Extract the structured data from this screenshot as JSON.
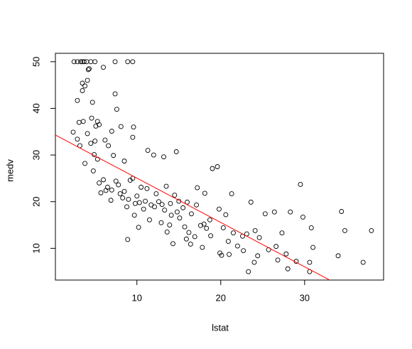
{
  "chart_data": {
    "type": "scatter",
    "x_label": "lstat",
    "y_label": "medv",
    "xlim": [
      0.28,
      39.42
    ],
    "ylim": [
      3.2,
      51.8
    ],
    "xticks": [
      10,
      20,
      30
    ],
    "yticks": [
      10,
      20,
      30,
      40,
      50
    ],
    "color": "#000000",
    "fit_line": {
      "color": "#ff0000",
      "intercept": 34.55,
      "slope": -0.95
    },
    "x": [
      2.9,
      3.3,
      3.5,
      3.7,
      4.0,
      4.5,
      5.0,
      7.4,
      8.9,
      9.5,
      2.5,
      2.9,
      3.5,
      3.8,
      4.1,
      4.2,
      4.3,
      3.5,
      4.6,
      4.7,
      5.1,
      5.3,
      5.5,
      7.4,
      7.6,
      6.0,
      3.1,
      3.6,
      2.4,
      2.9,
      3.2,
      4.1,
      4.5,
      5.0,
      6.2,
      6.6,
      7.0,
      8.1,
      9.6,
      9.5,
      11.3,
      12.0,
      14.7,
      13.2,
      7.2,
      5.3,
      4.9,
      8.5,
      3.8,
      4.8,
      5.5,
      6.0,
      6.5,
      7.0,
      7.5,
      8.0,
      8.5,
      9.0,
      9.5,
      10.0,
      10.3,
      10.5,
      11.0,
      11.2,
      11.7,
      12.1,
      12.3,
      12.6,
      13.0,
      13.3,
      13.5,
      14.0,
      14.1,
      14.5,
      14.8,
      15.0,
      15.1,
      15.5,
      15.7,
      16.0,
      16.2,
      16.5,
      16.9,
      17.1,
      17.2,
      17.6,
      18.0,
      18.1,
      18.3,
      18.7,
      19.0,
      19.6,
      19.8,
      20.3,
      20.6,
      20.9,
      21.3,
      21.5,
      22.0,
      22.6,
      23.1,
      23.3,
      23.6,
      24.1,
      24.4,
      24.6,
      25.3,
      25.7,
      26.4,
      26.6,
      27.3,
      27.8,
      28.3,
      29.0,
      29.5,
      29.8,
      30.6,
      30.8,
      31.0,
      34.0,
      34.4,
      34.8,
      36.98,
      37.97,
      30.6,
      6.3,
      7.8,
      8.3,
      9.2,
      9.8,
      10.8,
      12.9,
      13.6,
      14.3,
      16.4,
      18.8,
      20.1,
      22.7,
      26.8,
      5.7,
      6.9,
      8.8,
      9.7,
      11.5,
      13.9,
      15.9,
      17.8,
      19.9,
      21.0,
      24.0,
      28.0,
      10.2,
      8.9
    ],
    "values": [
      50,
      50,
      50,
      50,
      50,
      50,
      50,
      50,
      50,
      50,
      50,
      41.7,
      43.8,
      44.8,
      46,
      48.3,
      48.5,
      45.4,
      37.9,
      41.3,
      36.2,
      37.2,
      36.5,
      43.1,
      39.8,
      48.8,
      37,
      37.2,
      34.9,
      33.4,
      32,
      34.6,
      32.5,
      33,
      33.2,
      32,
      35.1,
      36.1,
      36,
      33.8,
      31,
      30,
      30.7,
      29.6,
      29.9,
      29.1,
      30.1,
      28.7,
      28.2,
      26.6,
      24,
      24.7,
      23.1,
      22.5,
      24.4,
      21.7,
      22.2,
      20.5,
      25,
      21.2,
      19.8,
      23.1,
      20.1,
      22.8,
      19.3,
      18.9,
      21.7,
      20,
      19.4,
      18.2,
      23.3,
      19.6,
      17.1,
      21.4,
      17.8,
      20.1,
      16.5,
      18.7,
      14.6,
      19.9,
      13.4,
      17.4,
      12.5,
      19.3,
      23,
      14.9,
      15.2,
      21.8,
      14.3,
      16.1,
      27.1,
      27.5,
      18.4,
      14.4,
      17.2,
      11.5,
      21.7,
      13.3,
      10.5,
      12.6,
      13.1,
      5,
      19.9,
      13.8,
      8.4,
      12.3,
      17.4,
      9.7,
      17.8,
      10.4,
      13.3,
      8.8,
      17.8,
      7.2,
      23.7,
      16.7,
      7,
      14.4,
      10.2,
      8.4,
      17.9,
      13.8,
      7,
      13.8,
      5,
      22.4,
      23.6,
      20.8,
      24.6,
      19.6,
      18.4,
      15.5,
      13.5,
      11,
      10.9,
      12.7,
      8.5,
      9.5,
      7.5,
      21.9,
      20.3,
      18.9,
      17.1,
      16.1,
      15,
      12,
      10.2,
      9,
      8.7,
      7,
      5.6,
      14.5,
      11.9
    ]
  }
}
